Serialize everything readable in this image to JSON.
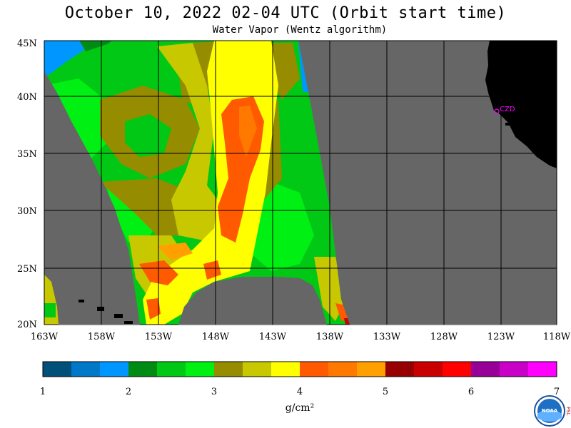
{
  "title": "October 10, 2022  02-04 UTC  (Orbit start time)",
  "subtitle": "Water Vapor (Wentz algorithm)",
  "map": {
    "lat_labels": [
      "45N",
      "40N",
      "35N",
      "30N",
      "25N",
      "20N"
    ],
    "lon_labels": [
      "163W",
      "158W",
      "153W",
      "148W",
      "143W",
      "138W",
      "133W",
      "128W",
      "123W",
      "118W"
    ],
    "station_label": "CZD",
    "colors": {
      "no_data": "#666666",
      "land": "#000000",
      "grid": "#000000",
      "station": "#ff00ff"
    }
  },
  "colorbar": {
    "ticks": [
      "1",
      "2",
      "3",
      "4",
      "5",
      "6",
      "7"
    ],
    "units": "g/cm²",
    "colors": [
      "#00507a",
      "#0078c8",
      "#0096ff",
      "#008c14",
      "#00c814",
      "#00f014",
      "#968c00",
      "#c8c800",
      "#ffff00",
      "#ff5a00",
      "#ff7800",
      "#ffa000",
      "#960000",
      "#c80000",
      "#ff0000",
      "#960096",
      "#c800c8",
      "#ff00ff"
    ]
  },
  "logo": {
    "text": "NOAA",
    "side_text": "PSL"
  }
}
